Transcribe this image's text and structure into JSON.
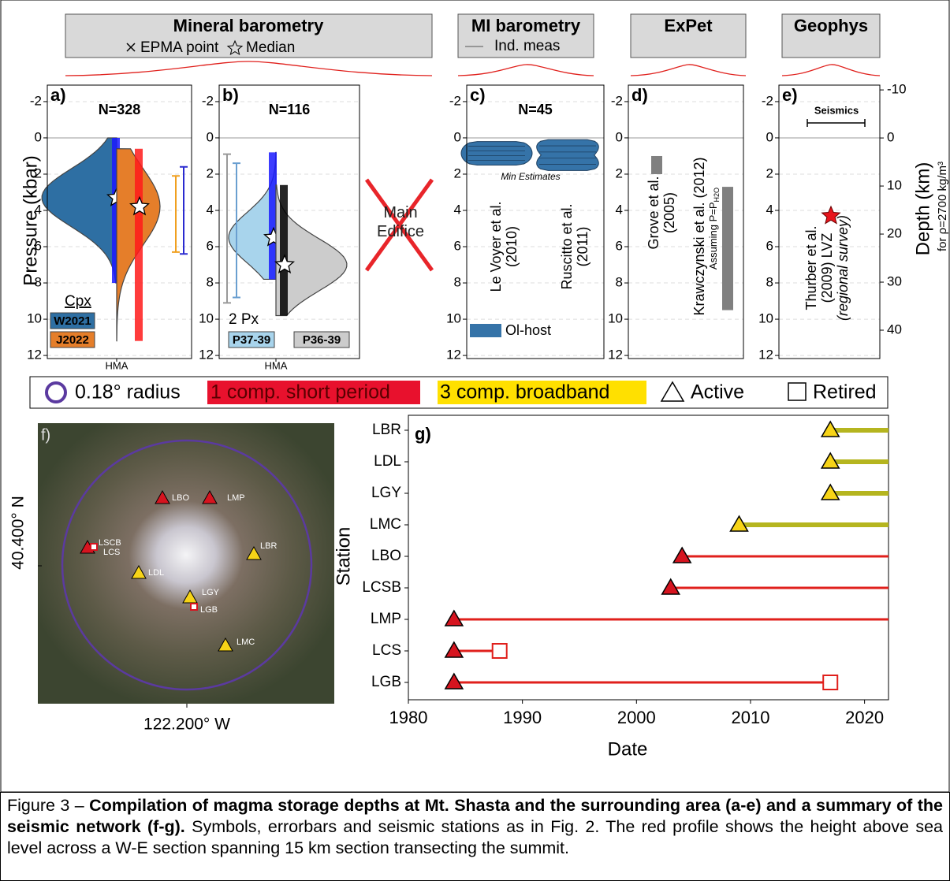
{
  "headers": [
    {
      "title": "Mineral barometry",
      "legend": [
        "EPMA point",
        "Median"
      ]
    },
    {
      "title": "MI barometry",
      "legend": [
        "Ind. meas"
      ]
    },
    {
      "title": "ExPet"
    },
    {
      "title": "Geophys"
    }
  ],
  "y_label": "Pressure (kbar)",
  "main_edifice": "Main Edifice",
  "chart_data": [
    {
      "type": "split_violin",
      "panel": "a)",
      "title": "N=328",
      "categories": [
        "HMA"
      ],
      "legend_title": "Cpx",
      "ylim": [
        12.17,
        -2.91
      ],
      "yticks": [
        -2,
        0,
        2,
        4,
        6,
        8,
        10,
        12
      ],
      "grid": true,
      "series": [
        {
          "name": "W2021",
          "color": "#2e6fa3",
          "point_color": "#1a1aff",
          "min": 0,
          "median": 3.3,
          "max": 8.0,
          "errorbar": [
            1.6,
            6.4
          ],
          "errorbar_color": "#2b2bd0"
        },
        {
          "name": "J2022",
          "color": "#e57e2a",
          "point_color": "#ff1a1a",
          "min": 0.6,
          "median": 3.8,
          "max": 11.2,
          "errorbar": [
            2.1,
            6.3
          ],
          "errorbar_color": "#f0a020"
        }
      ]
    },
    {
      "type": "split_violin",
      "panel": "b)",
      "title": "N=116",
      "categories": [
        "HMA"
      ],
      "legend_title": "2 Px",
      "ylim": [
        12.17,
        -2.91
      ],
      "yticks": [
        -2,
        0,
        2,
        4,
        6,
        8,
        10,
        12
      ],
      "grid": true,
      "series": [
        {
          "name": "P37-39",
          "color": "#a8d4ec",
          "point_color": "#1a1aff",
          "min": 0.8,
          "median": 5.5,
          "max": 7.8,
          "errorbar": [
            1.4,
            8.8
          ],
          "errorbar_color": "#6a9fd0"
        },
        {
          "name": "P36-39",
          "color": "#cccccc",
          "point_color": "#000000",
          "min": 2.6,
          "median": 7.0,
          "max": 9.8,
          "errorbar": [
            0.9,
            9.1
          ],
          "errorbar_color": "#999999"
        }
      ]
    },
    {
      "type": "violin",
      "panel": "c)",
      "title": "N=45",
      "annotation": "Min Estimates",
      "legend": "Ol-host",
      "color": "#3573a8",
      "ylim": [
        12.17,
        -2.91
      ],
      "yticks": [
        -2,
        0,
        2,
        4,
        6,
        8,
        10,
        12
      ],
      "grid": true,
      "series": [
        {
          "name": [
            "Le Voyer et al.",
            "(2010)"
          ],
          "min": 0.2,
          "max": 1.5
        },
        {
          "name": [
            "Ruscitto et al.",
            "(2011)"
          ],
          "min": 0.1,
          "max": 1.8
        }
      ]
    },
    {
      "type": "range_bar",
      "panel": "d)",
      "color": "#808080",
      "ylim": [
        12.17,
        -2.91
      ],
      "yticks": [
        -2,
        0,
        2,
        4,
        6,
        8,
        10,
        12
      ],
      "grid": true,
      "series": [
        {
          "name": [
            "Grove et al.",
            "(2005)"
          ],
          "min": 1.0,
          "max": 2.0
        },
        {
          "name": [
            "Krawczynski et al. (2012)"
          ],
          "note": "Assuming P=P",
          "note_sub": "H2O",
          "min": 2.7,
          "max": 9.5
        }
      ]
    },
    {
      "type": "point",
      "panel": "e)",
      "range_label": "Seismics",
      "y2_label": "Depth (km)",
      "y2_note": "for ρ=2700 kg/m³",
      "ylim": [
        12.17,
        -2.91
      ],
      "yticks": [
        -2,
        0,
        2,
        4,
        6,
        8,
        10,
        12
      ],
      "y2lim": [
        45.9,
        -11.0
      ],
      "y2ticks": [
        -10,
        0,
        10,
        20,
        30,
        40
      ],
      "grid": true,
      "series": [
        {
          "name": [
            "Thurber et al.",
            "(2009) LVZ",
            "(regional survey)"
          ],
          "color": "#e8141c",
          "value": 4.3
        }
      ]
    },
    {
      "type": "timeline",
      "panel": "g)",
      "x_label": "Date",
      "y_label": "Station",
      "categories": [
        "LBR",
        "LDL",
        "LGY",
        "LMC",
        "LBO",
        "LCSB",
        "LMP",
        "LCS",
        "LGB"
      ],
      "start": [
        2017,
        2017,
        2017,
        2009,
        2004,
        2003,
        1984,
        1984,
        1984
      ],
      "end": [
        null,
        null,
        null,
        null,
        null,
        null,
        null,
        1988,
        2017
      ],
      "colors": [
        "#f7d417",
        "#f7d417",
        "#f7d417",
        "#f7d417",
        "#d6141f",
        "#d6141f",
        "#d6141f",
        "#d6141f",
        "#d6141f"
      ],
      "line_colors": [
        "#b5b51f",
        "#b5b51f",
        "#b5b51f",
        "#b5b51f",
        "#e0201c",
        "#e0201c",
        "#e0201c",
        "#e0201c",
        "#e0201c"
      ],
      "xlim": [
        1980,
        2022.1
      ],
      "xticks": [
        1980,
        1990,
        2000,
        2010,
        2020
      ]
    }
  ],
  "legend": {
    "radius": "0.18° radius",
    "short_period": "1 comp. short period",
    "broadband": "3 comp. broadband",
    "active": "Active",
    "retired": "Retired",
    "circle_color": "#5b3aa0",
    "short_period_color": "#e8112d",
    "broadband_color": "#ffe000"
  },
  "map": {
    "panel": "f)",
    "lat_label": "40.400° N",
    "lon_label": "122.200° W",
    "stations": [
      {
        "name": "LBO",
        "symbol": "triangle",
        "color": "#d6141f"
      },
      {
        "name": "LMP",
        "symbol": "triangle",
        "color": "#d6141f"
      },
      {
        "name": "LSCB",
        "symbol": "triangle",
        "color": "#d6141f"
      },
      {
        "name": "LCS",
        "symbol": "square",
        "color": "#d6141f"
      },
      {
        "name": "LBR",
        "symbol": "triangle",
        "color": "#f7d417"
      },
      {
        "name": "LDL",
        "symbol": "triangle",
        "color": "#f7d417"
      },
      {
        "name": "LGY",
        "symbol": "triangle",
        "color": "#f7d417"
      },
      {
        "name": "LGB",
        "symbol": "square",
        "color": "#d6141f"
      },
      {
        "name": "LMC",
        "symbol": "triangle",
        "color": "#f7d417"
      }
    ]
  },
  "caption": {
    "prefix": "Figure 3 – ",
    "bold": "Compilation of magma storage depths at Mt. Shasta and the surrounding area (a-e) and a summary of the seismic network (f-g).",
    "text": " Symbols, errorbars and seismic stations as in Fig. 2. The red profile shows the height above sea level across a W-E section spanning 15 km section transecting the summit."
  }
}
